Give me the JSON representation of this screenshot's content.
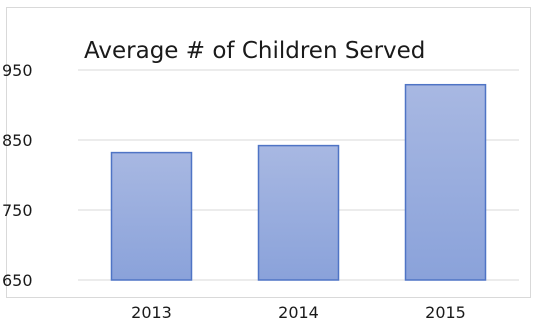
{
  "chart_data": {
    "type": "bar",
    "title": "Average # of Children Served",
    "categories": [
      "2013",
      "2014",
      "2015"
    ],
    "values": [
      832,
      842,
      929
    ],
    "ylim": [
      650,
      950
    ],
    "yticks": [
      650,
      750,
      850,
      950
    ],
    "grid": true,
    "legend": "none",
    "colors": {
      "bar_top": "#a8b8e2",
      "bar_bottom": "#8aa2da",
      "bar_outline": "#4f74c5",
      "grid": "#d9d9d9",
      "frame": "#d9d9d9"
    }
  }
}
